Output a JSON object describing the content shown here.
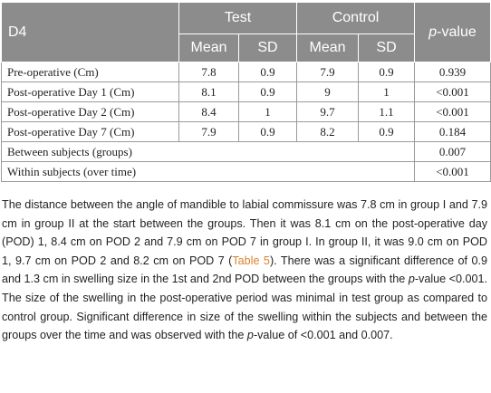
{
  "table": {
    "corner_label": "D4",
    "groups": [
      "Test",
      "Control"
    ],
    "pvalue_prefix": "p",
    "pvalue_suffix": "-value",
    "subheaders": [
      "Mean",
      "SD",
      "Mean",
      "SD"
    ],
    "rows": [
      {
        "label": "Pre-operative (Cm)",
        "test_mean": "7.8",
        "test_sd": "0.9",
        "control_mean": "7.9",
        "control_sd": "0.9",
        "p": "0.939"
      },
      {
        "label": "Post-operative Day 1 (Cm)",
        "test_mean": "8.1",
        "test_sd": "0.9",
        "control_mean": "9",
        "control_sd": "1",
        "p": "<0.001"
      },
      {
        "label": "Post-operative Day 2 (Cm)",
        "test_mean": "8.4",
        "test_sd": "1",
        "control_mean": "9.7",
        "control_sd": "1.1",
        "p": "<0.001"
      },
      {
        "label": "Post-operative Day 7 (Cm)",
        "test_mean": "7.9",
        "test_sd": "0.9",
        "control_mean": "8.2",
        "control_sd": "0.9",
        "p": "0.184"
      }
    ],
    "summary": [
      {
        "label": "Between subjects (groups)",
        "p": "0.007"
      },
      {
        "label": "Within subjects (over time)",
        "p": "<0.001"
      }
    ]
  },
  "paragraph": {
    "part1": "The distance between the angle of mandible to labial commissure was 7.8 cm in group I and 7.9 cm in group II at the start between the groups. Then it was 8.1 cm on the post-operative day (POD) 1, 8.4 cm on POD 2 and 7.9 cm on POD 7 in group I. In group II, it was 9.0 cm on POD 1, 9.7 cm on POD 2 and 8.2 cm on POD 7 (",
    "ref": "Table 5",
    "part2": "). There was a significant difference of 0.9 and 1.3 cm in swelling size in the 1st and 2nd POD between the groups with the ",
    "italic1": "p",
    "part3": "-value <0.001. The size of the swelling in the post-operative period was minimal in test group as compared to control group. Significant difference in size of the swelling within the subjects and between the groups over the time and was observed with the ",
    "italic2": "p",
    "part4": "-value of <0.001 and 0.007."
  },
  "colors": {
    "header_bg": "#8c8c8c",
    "border": "#9a9a9a",
    "link": "#d9822b"
  }
}
